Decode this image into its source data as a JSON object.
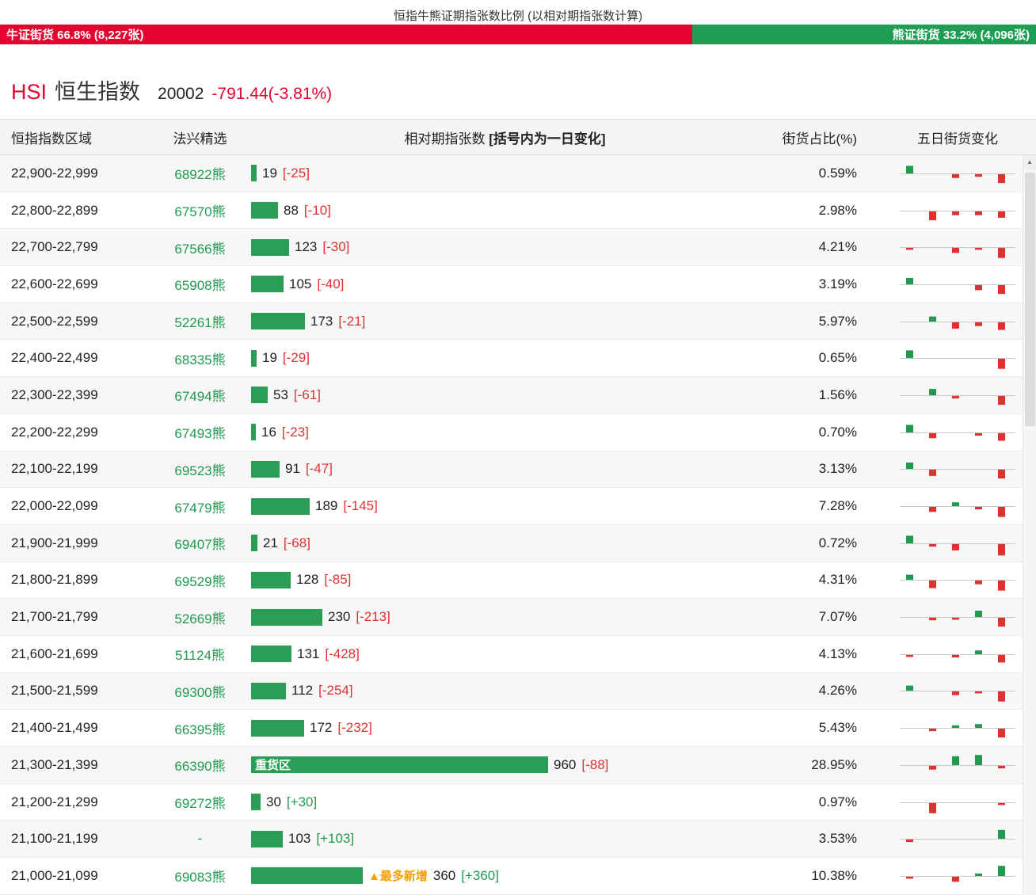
{
  "page": {
    "title": "恒指牛熊证期指张数比例 (以相对期指张数计算)"
  },
  "colors": {
    "bull_red": "#e4032e",
    "bear_green": "#1f9d55",
    "bar_green": "#2a9d56",
    "up_green": "#21994f",
    "down_red": "#e03131",
    "tag_orange": "#f59f00"
  },
  "ratio_bar": {
    "bull_text": "牛证街货 66.8% (8,227张)",
    "bull_value": 66.8,
    "bear_text": "熊证街货 33.2% (4,096张)",
    "bear_value": 33.2
  },
  "index_header": {
    "symbol": "HSI",
    "name": "恒生指数",
    "price": "20002",
    "change": "-791.44(-3.81%)"
  },
  "table": {
    "header": {
      "range": "恒指指数区域",
      "pick": "法兴精选",
      "bar_main": "相对期指张数",
      "bar_note": "[括号内为一日变化]",
      "pct": "街货占比(%)",
      "spark": "五日街货变化"
    },
    "rows": [
      {
        "range": "22,900-22,999",
        "pick": "68922熊",
        "value": 19,
        "change": -25,
        "pct": "0.59%",
        "spark": [
          6,
          0,
          -3,
          -2,
          -7
        ]
      },
      {
        "range": "22,800-22,899",
        "pick": "67570熊",
        "value": 88,
        "change": -10,
        "pct": "2.98%",
        "spark": [
          0,
          -7,
          -3,
          -3,
          -5
        ]
      },
      {
        "range": "22,700-22,799",
        "pick": "67566熊",
        "value": 123,
        "change": -30,
        "pct": "4.21%",
        "spark": [
          -1,
          0,
          -4,
          -1,
          -8
        ]
      },
      {
        "range": "22,600-22,699",
        "pick": "65908熊",
        "value": 105,
        "change": -40,
        "pct": "3.19%",
        "spark": [
          5,
          0,
          0,
          -4,
          -7
        ]
      },
      {
        "range": "22,500-22,599",
        "pick": "52261熊",
        "value": 173,
        "change": -21,
        "pct": "5.97%",
        "spark": [
          0,
          4,
          -5,
          -3,
          -6
        ]
      },
      {
        "range": "22,400-22,499",
        "pick": "68335熊",
        "value": 19,
        "change": -29,
        "pct": "0.65%",
        "spark": [
          6,
          0,
          0,
          0,
          -8
        ]
      },
      {
        "range": "22,300-22,399",
        "pick": "67494熊",
        "value": 53,
        "change": -61,
        "pct": "1.56%",
        "spark": [
          0,
          5,
          -2,
          0,
          -7
        ]
      },
      {
        "range": "22,200-22,299",
        "pick": "67493熊",
        "value": 16,
        "change": -23,
        "pct": "0.70%",
        "spark": [
          6,
          -4,
          0,
          -2,
          -6
        ]
      },
      {
        "range": "22,100-22,199",
        "pick": "69523熊",
        "value": 91,
        "change": -47,
        "pct": "3.13%",
        "spark": [
          5,
          -5,
          0,
          0,
          -7
        ]
      },
      {
        "range": "22,000-22,099",
        "pick": "67479熊",
        "value": 189,
        "change": -145,
        "pct": "7.28%",
        "spark": [
          0,
          -4,
          3,
          -2,
          -8
        ]
      },
      {
        "range": "21,900-21,999",
        "pick": "69407熊",
        "value": 21,
        "change": -68,
        "pct": "0.72%",
        "spark": [
          6,
          -2,
          -5,
          0,
          -9
        ]
      },
      {
        "range": "21,800-21,899",
        "pick": "69529熊",
        "value": 128,
        "change": -85,
        "pct": "4.31%",
        "spark": [
          4,
          -6,
          0,
          -3,
          -8
        ]
      },
      {
        "range": "21,700-21,799",
        "pick": "52669熊",
        "value": 230,
        "change": -213,
        "pct": "7.07%",
        "spark": [
          0,
          -2,
          -1,
          5,
          -7
        ]
      },
      {
        "range": "21,600-21,699",
        "pick": "51124熊",
        "value": 131,
        "change": -428,
        "pct": "4.13%",
        "spark": [
          -1,
          0,
          -2,
          3,
          -6
        ]
      },
      {
        "range": "21,500-21,599",
        "pick": "69300熊",
        "value": 112,
        "change": -254,
        "pct": "4.26%",
        "spark": [
          4,
          0,
          -3,
          -1,
          -8
        ]
      },
      {
        "range": "21,400-21,499",
        "pick": "66395熊",
        "value": 172,
        "change": -232,
        "pct": "5.43%",
        "spark": [
          0,
          -2,
          2,
          3,
          -7
        ]
      },
      {
        "range": "21,300-21,399",
        "pick": "66390熊",
        "value": 960,
        "change": -88,
        "pct": "28.95%",
        "bar_tag": "重货区",
        "spark": [
          0,
          -3,
          7,
          8,
          -2
        ]
      },
      {
        "range": "21,200-21,299",
        "pick": "69272熊",
        "value": 30,
        "change": 30,
        "pct": "0.97%",
        "spark": [
          0,
          -8,
          0,
          0,
          -1
        ]
      },
      {
        "range": "21,100-21,199",
        "pick": "-",
        "value": 103,
        "change": 103,
        "pct": "3.53%",
        "spark": [
          -2,
          0,
          0,
          0,
          7
        ]
      },
      {
        "range": "21,000-21,099",
        "pick": "69083熊",
        "value": 360,
        "change": 360,
        "pct": "10.38%",
        "prefix_tag": "▲最多新增",
        "spark": [
          -1,
          0,
          -4,
          2,
          8
        ]
      }
    ]
  }
}
